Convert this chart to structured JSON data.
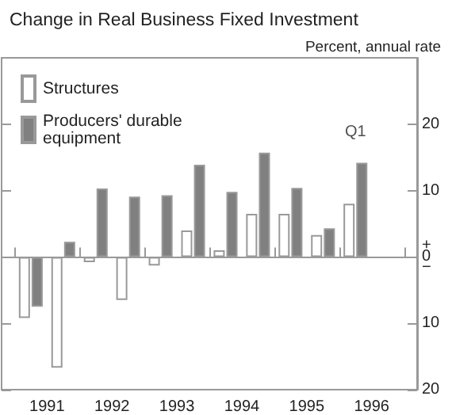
{
  "chart_data": {
    "type": "bar",
    "title": "Change in Real Business Fixed Investment",
    "subtitle": "Percent, annual rate",
    "x": [
      1991.25,
      1991.75,
      1992.25,
      1992.75,
      1993.25,
      1993.75,
      1994.25,
      1994.75,
      1995.25,
      1995.75,
      1996.25
    ],
    "series": [
      {
        "name": "Structures",
        "color": "#ffffff",
        "values": [
          -9.2,
          -16.7,
          -0.8,
          -6.5,
          -1.3,
          4.0,
          1.0,
          6.5,
          6.5,
          3.3,
          8.0
        ]
      },
      {
        "name": "Producers' durable\nequipment",
        "color": "#808080",
        "values": [
          -7.5,
          2.3,
          10.3,
          9.1,
          9.3,
          13.9,
          9.8,
          15.7,
          10.4,
          4.3,
          14.2
        ]
      }
    ],
    "xlim": [
      1990.8,
      1997.2
    ],
    "xticks": [
      {
        "value": 1991,
        "label": null
      },
      {
        "value": 1991.5,
        "label": "1991"
      },
      {
        "value": 1992,
        "label": null
      },
      {
        "value": 1992.5,
        "label": "1992"
      },
      {
        "value": 1993,
        "label": null
      },
      {
        "value": 1993.5,
        "label": "1993"
      },
      {
        "value": 1994,
        "label": null
      },
      {
        "value": 1994.5,
        "label": "1994"
      },
      {
        "value": 1995,
        "label": null
      },
      {
        "value": 1995.5,
        "label": "1995"
      },
      {
        "value": 1996,
        "label": null
      },
      {
        "value": 1996.5,
        "label": "1996"
      },
      {
        "value": 1997,
        "label": null
      }
    ],
    "ylim": [
      -20,
      30
    ],
    "yticks": [
      {
        "value": -20,
        "label": "20"
      },
      {
        "value": -10,
        "label": "10"
      },
      {
        "value": 0,
        "label": "+\n0\n−"
      },
      10,
      20
    ],
    "annotations": [
      {
        "text": "Q1",
        "x": 1996.25,
        "y": 14.2
      }
    ],
    "ref_lines": [
      {
        "axis": "y",
        "value": 0
      }
    ],
    "grid": false,
    "legend": "top left"
  }
}
